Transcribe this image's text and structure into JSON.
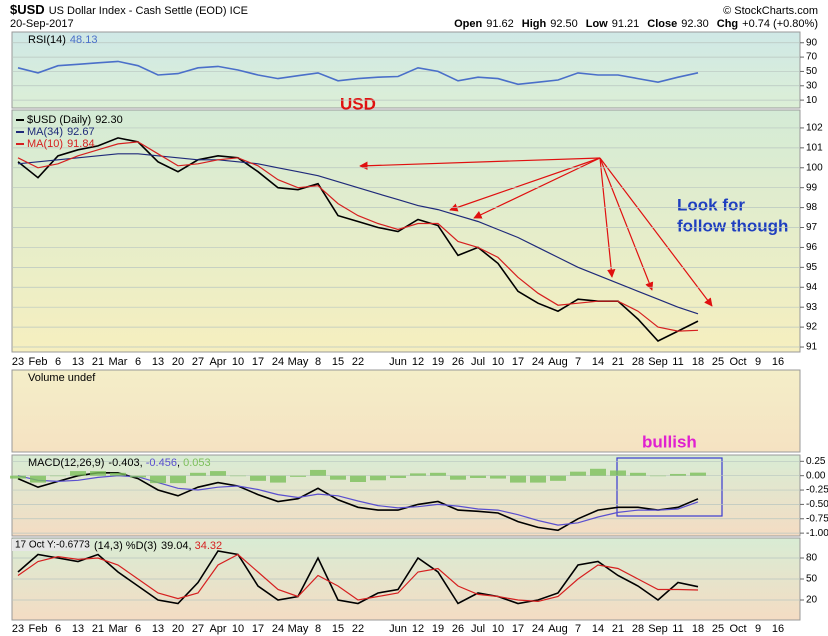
{
  "header": {
    "symbol": "$USD",
    "name": "US Dollar Index - Cash Settle (EOD) ICE",
    "date": "20-Sep-2017",
    "source": "© StockCharts.com",
    "quote": [
      {
        "label": "Open",
        "text": "91.62"
      },
      {
        "label": "High",
        "text": "92.50"
      },
      {
        "label": "Low",
        "text": "91.21"
      },
      {
        "label": "Close",
        "text": "92.30"
      },
      {
        "label": "Chg",
        "text": "+0.74 (+0.80%)"
      }
    ]
  },
  "annotations": {
    "usd": "USD",
    "follow_1": "Look for",
    "follow_2": "follow though",
    "bullish": "bullish",
    "cursor": "17 Oct Y:-0.6773"
  },
  "chart_data": [
    {
      "type": "line",
      "title": "RSI(14)",
      "ylim": [
        -1,
        105
      ],
      "yticks": [
        90,
        70,
        50,
        30,
        10
      ],
      "grid": true,
      "series": [
        {
          "name": "RSI(14)",
          "color": "#4a6fc9",
          "values": [
            55,
            48,
            58,
            60,
            62,
            64,
            58,
            45,
            47,
            55,
            57,
            52,
            45,
            40,
            44,
            48,
            37,
            40,
            42,
            43,
            55,
            50,
            37,
            42,
            40,
            32,
            35,
            38,
            48,
            45,
            45,
            40,
            35,
            42,
            48.13,
            null,
            null,
            null,
            null
          ]
        }
      ]
    },
    {
      "type": "line",
      "title": "$USD (Daily)",
      "ylim": [
        90.75,
        102.9
      ],
      "yticks": [
        91,
        92,
        93,
        94,
        95,
        96,
        97,
        98,
        99,
        100,
        101,
        102
      ],
      "grid": true,
      "categories": [
        "23",
        "Feb",
        "6",
        "13",
        "21",
        "Mar",
        "6",
        "13",
        "20",
        "27",
        "Apr",
        "10",
        "17",
        "24",
        "May",
        "8",
        "15",
        "22",
        null,
        "Jun",
        "12",
        "19",
        "26",
        "Jul",
        "10",
        "17",
        "24",
        "Aug",
        "7",
        "14",
        "21",
        "28",
        "Sep",
        "11",
        "18",
        "25",
        "Oct",
        "9",
        "16"
      ],
      "series": [
        {
          "name": "$USD (Daily)",
          "legend_label": "92.30",
          "color": "#000000",
          "values": [
            100.3,
            99.5,
            100.6,
            100.9,
            101.1,
            101.5,
            101.3,
            100.3,
            99.8,
            100.4,
            100.6,
            100.5,
            99.8,
            99.0,
            98.9,
            99.2,
            97.6,
            97.3,
            97.0,
            96.8,
            97.4,
            97.1,
            95.6,
            96.0,
            95.2,
            93.8,
            93.2,
            92.8,
            93.4,
            93.3,
            93.3,
            92.4,
            91.3,
            91.8,
            92.3,
            null,
            null,
            null,
            null
          ]
        },
        {
          "name": "MA(34)",
          "legend_label": "92.67",
          "color": "#1f2a7a",
          "values": [
            100.2,
            100.3,
            100.4,
            100.5,
            100.6,
            100.7,
            100.7,
            100.6,
            100.5,
            100.4,
            100.4,
            100.3,
            100.2,
            100.0,
            99.8,
            99.6,
            99.3,
            99.0,
            98.7,
            98.4,
            98.1,
            97.9,
            97.6,
            97.3,
            96.9,
            96.5,
            96.0,
            95.5,
            95.0,
            94.6,
            94.2,
            93.8,
            93.4,
            93.0,
            92.67,
            null,
            null,
            null,
            null
          ]
        },
        {
          "name": "MA(10)",
          "legend_label": "91.84",
          "color": "#d62020",
          "values": [
            100.5,
            100.0,
            100.2,
            100.6,
            100.9,
            101.2,
            101.3,
            100.7,
            100.1,
            100.2,
            100.4,
            100.5,
            100.1,
            99.4,
            99.0,
            99.1,
            98.2,
            97.6,
            97.2,
            96.9,
            97.2,
            97.2,
            96.3,
            96.0,
            95.5,
            94.5,
            93.7,
            93.1,
            93.2,
            93.3,
            93.3,
            92.8,
            92.0,
            91.8,
            91.84,
            null,
            null,
            null,
            null
          ]
        }
      ]
    },
    {
      "type": "empty",
      "title": "Volume undef"
    },
    {
      "type": "line",
      "title": "MACD(12,26,9)",
      "ylim": [
        -1.05,
        0.36
      ],
      "grid": true,
      "yticks": [
        0.25,
        {
          "value": 0,
          "label": "0.00"
        },
        -0.25,
        {
          "value": -0.5,
          "label": "-0.50"
        },
        -0.75,
        {
          "value": -1,
          "label": "-1.00"
        }
      ],
      "series": [
        {
          "name": "MACD",
          "color": "#000000",
          "values": [
            -0.05,
            -0.2,
            -0.1,
            0.0,
            0.05,
            0.05,
            -0.05,
            -0.25,
            -0.35,
            -0.2,
            -0.12,
            -0.18,
            -0.33,
            -0.45,
            -0.4,
            -0.22,
            -0.42,
            -0.55,
            -0.6,
            -0.6,
            -0.5,
            -0.45,
            -0.6,
            -0.62,
            -0.65,
            -0.8,
            -0.9,
            -0.95,
            -0.75,
            -0.6,
            -0.55,
            -0.55,
            -0.6,
            -0.55,
            -0.403,
            null,
            null,
            null,
            null
          ]
        },
        {
          "name": "Signal",
          "color": "#5a4fcf",
          "values": [
            0.0,
            -0.08,
            -0.1,
            -0.08,
            -0.03,
            0.0,
            -0.02,
            -0.12,
            -0.22,
            -0.25,
            -0.2,
            -0.18,
            -0.24,
            -0.33,
            -0.38,
            -0.32,
            -0.35,
            -0.44,
            -0.52,
            -0.56,
            -0.54,
            -0.5,
            -0.53,
            -0.58,
            -0.6,
            -0.68,
            -0.78,
            -0.86,
            -0.82,
            -0.72,
            -0.64,
            -0.6,
            -0.6,
            -0.58,
            -0.456,
            null,
            null,
            null,
            null
          ]
        },
        {
          "name": "Histogram",
          "kind": "bar",
          "color": "#7cbf5a",
          "values": [
            -0.05,
            -0.12,
            0.0,
            0.08,
            0.08,
            0.05,
            -0.03,
            -0.13,
            -0.13,
            0.05,
            0.08,
            0.0,
            -0.09,
            -0.12,
            -0.02,
            0.1,
            -0.07,
            -0.11,
            -0.08,
            -0.04,
            0.04,
            0.05,
            -0.07,
            -0.04,
            -0.05,
            -0.12,
            -0.12,
            -0.09,
            0.07,
            0.12,
            0.09,
            0.05,
            0.0,
            0.03,
            0.053,
            null,
            null,
            null,
            null
          ]
        }
      ]
    },
    {
      "type": "line",
      "title": "(14,3) %D(3)",
      "ylim": [
        -8.6,
        108.6
      ],
      "yticks": [
        80,
        50,
        20
      ],
      "grid": true,
      "categories": [
        "23",
        "Feb",
        "6",
        "13",
        "21",
        "Mar",
        "6",
        "13",
        "20",
        "27",
        "Apr",
        "10",
        "17",
        "24",
        "May",
        "8",
        "15",
        "22",
        null,
        "Jun",
        "12",
        "19",
        "26",
        "Jul",
        "10",
        "17",
        "24",
        "Aug",
        "7",
        "14",
        "21",
        "28",
        "Sep",
        "11",
        "18",
        "25",
        "Oct",
        "9",
        "16"
      ],
      "series": [
        {
          "name": "%K",
          "color": "#000000",
          "values": [
            60,
            85,
            80,
            75,
            85,
            60,
            40,
            20,
            15,
            45,
            90,
            85,
            40,
            20,
            25,
            80,
            20,
            15,
            30,
            35,
            80,
            60,
            15,
            30,
            25,
            15,
            20,
            30,
            70,
            75,
            55,
            40,
            20,
            45,
            39.04,
            null,
            null,
            null,
            null
          ]
        },
        {
          "name": "%D",
          "color": "#d62020",
          "values": [
            55,
            75,
            82,
            78,
            80,
            70,
            50,
            30,
            22,
            30,
            70,
            85,
            60,
            35,
            25,
            55,
            40,
            20,
            25,
            30,
            60,
            65,
            40,
            28,
            25,
            20,
            18,
            25,
            50,
            70,
            65,
            50,
            35,
            35,
            34.32,
            null,
            null,
            null,
            null
          ]
        }
      ]
    }
  ]
}
